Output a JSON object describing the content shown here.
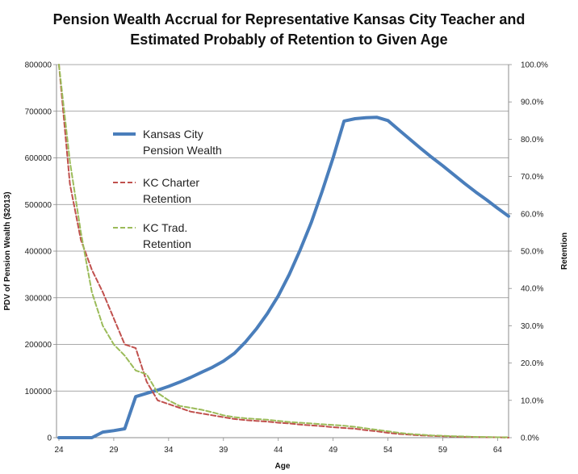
{
  "chart_data": {
    "type": "line",
    "title_line1": "Pension Wealth Accrual for Representative Kansas City Teacher and",
    "title_line2": "Estimated  Probably of Retention to Given Age",
    "xlabel": "Age",
    "ylabel": "PDV of Pension Wealth ($2013)",
    "y2label": "Retention",
    "xlim": [
      24,
      65
    ],
    "ylim": [
      0,
      800000
    ],
    "y2lim": [
      0,
      1.0
    ],
    "x_ticks": [
      "24",
      "29",
      "34",
      "39",
      "44",
      "49",
      "54",
      "59",
      "64"
    ],
    "y_ticks": [
      "0",
      "100000",
      "200000",
      "300000",
      "400000",
      "500000",
      "600000",
      "700000",
      "800000"
    ],
    "y2_ticks": [
      "0.0%",
      "10.0%",
      "20.0%",
      "30.0%",
      "40.0%",
      "50.0%",
      "60.0%",
      "70.0%",
      "80.0%",
      "90.0%",
      "100.0%"
    ],
    "grid": "horizontal",
    "legend_position": "upper-left inside plot",
    "legend": [
      {
        "line1": "Kansas City",
        "line2": "Pension Wealth",
        "color": "#4a7ebb",
        "style": "solid"
      },
      {
        "line1": "KC Charter",
        "line2": "Retention",
        "color": "#c0504d",
        "style": "dashed"
      },
      {
        "line1": "KC Trad.",
        "line2": "Retention",
        "color": "#9bbb59",
        "style": "dashed"
      }
    ],
    "series": [
      {
        "name": "Kansas City Pension Wealth",
        "axis": "left",
        "color": "#4a7ebb",
        "x": [
          24,
          25,
          26,
          27,
          28,
          29,
          30,
          31,
          32,
          33,
          34,
          35,
          36,
          37,
          38,
          39,
          40,
          41,
          42,
          43,
          44,
          45,
          46,
          47,
          48,
          49,
          50,
          51,
          52,
          53,
          54,
          55,
          56,
          57,
          58,
          59,
          60,
          61,
          62,
          63,
          64,
          65
        ],
        "values": [
          0,
          0,
          0,
          0,
          12000,
          15000,
          19000,
          88000,
          95000,
          102000,
          110000,
          119000,
          129000,
          140000,
          151000,
          164000,
          181000,
          205000,
          233000,
          266000,
          304000,
          350000,
          403000,
          461000,
          528000,
          600000,
          679000,
          684000,
          686000,
          687000,
          680000,
          660000,
          640000,
          620000,
          601000,
          583000,
          564000,
          545000,
          527000,
          510000,
          492000,
          475000
        ]
      },
      {
        "name": "KC Charter Retention",
        "axis": "right",
        "color": "#c0504d",
        "x": [
          24,
          25,
          26,
          27,
          28,
          29,
          30,
          31,
          32,
          33,
          34,
          35,
          36,
          37,
          38,
          39,
          40,
          41,
          42,
          43,
          44,
          45,
          46,
          47,
          48,
          49,
          50,
          51,
          52,
          53,
          54,
          55,
          56,
          57,
          58,
          59,
          60,
          61,
          62,
          63,
          64,
          65
        ],
        "values": [
          1.0,
          0.68,
          0.53,
          0.45,
          0.39,
          0.32,
          0.25,
          0.24,
          0.15,
          0.1,
          0.09,
          0.08,
          0.07,
          0.065,
          0.06,
          0.055,
          0.05,
          0.047,
          0.045,
          0.043,
          0.04,
          0.038,
          0.035,
          0.033,
          0.031,
          0.028,
          0.026,
          0.024,
          0.02,
          0.017,
          0.013,
          0.01,
          0.008,
          0.006,
          0.005,
          0.004,
          0.003,
          0.002,
          0.002,
          0.001,
          0.001,
          0.0
        ]
      },
      {
        "name": "KC Trad. Retention",
        "axis": "right",
        "color": "#9bbb59",
        "x": [
          24,
          25,
          26,
          27,
          28,
          29,
          30,
          31,
          32,
          33,
          34,
          35,
          36,
          37,
          38,
          39,
          40,
          41,
          42,
          43,
          44,
          45,
          46,
          47,
          48,
          49,
          50,
          51,
          52,
          53,
          54,
          55,
          56,
          57,
          58,
          59,
          60,
          61,
          62,
          63,
          64,
          65
        ],
        "values": [
          1.0,
          0.74,
          0.55,
          0.39,
          0.3,
          0.25,
          0.22,
          0.18,
          0.17,
          0.12,
          0.1,
          0.085,
          0.08,
          0.075,
          0.068,
          0.06,
          0.055,
          0.052,
          0.05,
          0.048,
          0.045,
          0.042,
          0.04,
          0.038,
          0.036,
          0.034,
          0.032,
          0.029,
          0.025,
          0.021,
          0.017,
          0.013,
          0.01,
          0.008,
          0.006,
          0.005,
          0.004,
          0.003,
          0.002,
          0.002,
          0.001,
          0.001
        ]
      }
    ]
  }
}
